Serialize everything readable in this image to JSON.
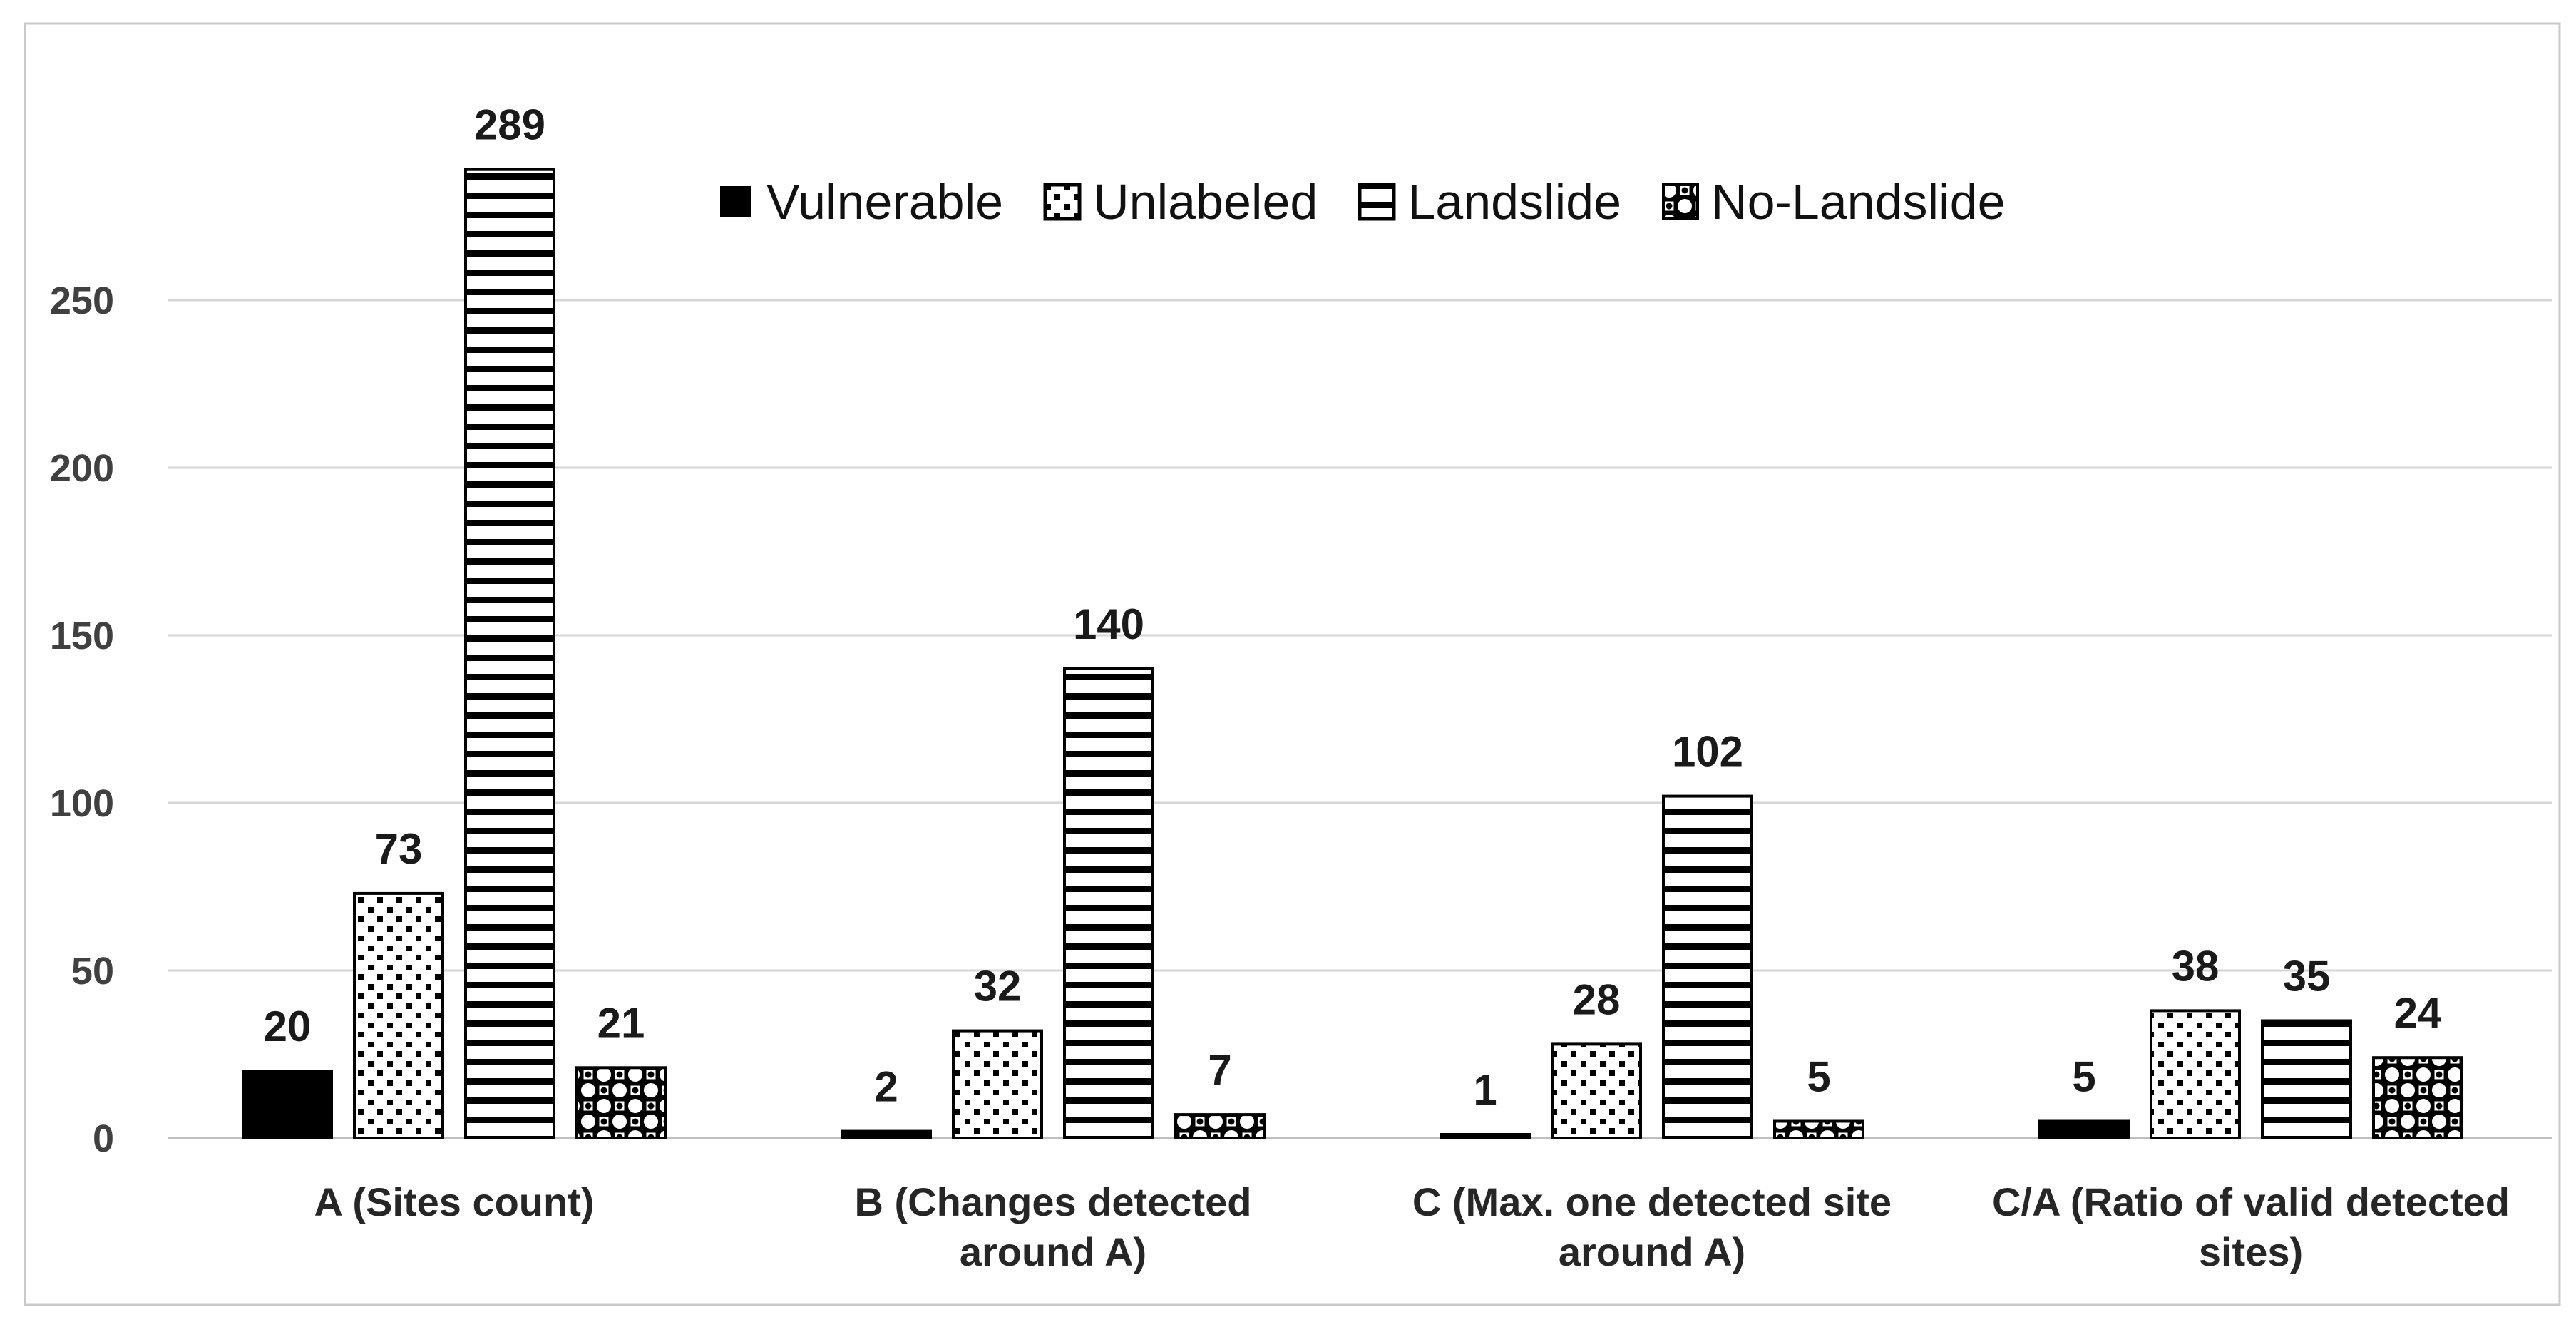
{
  "chart_data": {
    "type": "bar",
    "title": "",
    "categories": [
      "A (Sites count)",
      "B (Changes detected\naround A)",
      "C (Max. one detected site\naround A)",
      "C/A (Ratio of valid detected\nsites)"
    ],
    "series": [
      {
        "name": "Vulnerable",
        "pattern": "solid",
        "values": [
          20,
          2,
          1,
          5
        ]
      },
      {
        "name": "Unlabeled",
        "pattern": "dots",
        "values": [
          73,
          32,
          28,
          38
        ]
      },
      {
        "name": "Landslide",
        "pattern": "hlines",
        "values": [
          289,
          140,
          102,
          35
        ]
      },
      {
        "name": "No-Landslide",
        "pattern": "weave",
        "values": [
          21,
          7,
          5,
          24
        ]
      }
    ],
    "y_ticks": [
      0,
      50,
      100,
      150,
      200,
      250
    ],
    "ylim": [
      0,
      250
    ],
    "grid": true,
    "legend_position": "top",
    "xlabel": "",
    "ylabel": "",
    "colors": {
      "bar_foreground": "#000000",
      "background": "#ffffff",
      "gridline": "#d6d6d6",
      "axis_line": "#bfbfbf",
      "frame": "#c9c9c9",
      "tick_label": "#404040",
      "value_label": "#1a1a1a",
      "category_label": "#262626",
      "legend_text": "#111111"
    }
  }
}
